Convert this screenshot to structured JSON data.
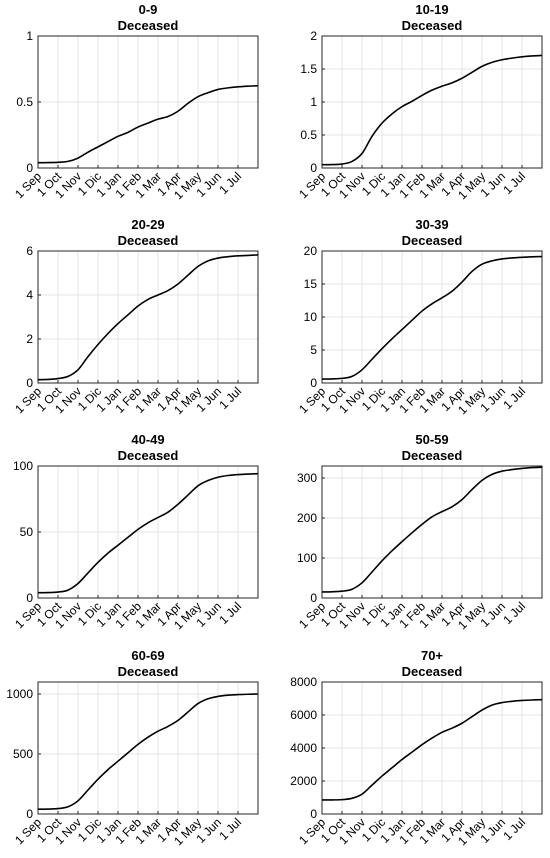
{
  "chart_data": [
    {
      "type": "line",
      "title": "0-9",
      "subtitle": "Deceased",
      "x": [
        "1 Sep",
        "15 Sep",
        "1 Oct",
        "15 Oct",
        "1 Nov",
        "15 Nov",
        "1 Dic",
        "15 Dic",
        "1 Jan",
        "15 Jan",
        "1 Feb",
        "15 Feb",
        "1 Mar",
        "15 Mar",
        "1 Apr",
        "15 Apr",
        "1 May",
        "15 May",
        "1 Jun",
        "15 Jun",
        "1 Jul",
        "15 Jul",
        "1 Aug"
      ],
      "values": [
        0.04,
        0.041,
        0.043,
        0.05,
        0.075,
        0.12,
        0.16,
        0.2,
        0.24,
        0.27,
        0.31,
        0.34,
        0.37,
        0.39,
        0.43,
        0.49,
        0.54,
        0.57,
        0.595,
        0.607,
        0.615,
        0.62,
        0.623
      ],
      "ylim": [
        0,
        1
      ],
      "yticks": [
        0,
        0.5,
        1
      ],
      "ytick_labels": [
        "0",
        "0.5",
        "1"
      ],
      "xtick_labels": [
        "1 Sep",
        "1 Oct",
        "1 Nov",
        "1 Dic",
        "1 Jan",
        "1 Feb",
        "1 Mar",
        "1 Apr",
        "1 May",
        "1 Jun",
        "1 Jul"
      ],
      "grid": true
    },
    {
      "type": "line",
      "title": "10-19",
      "subtitle": "Deceased",
      "x": [
        "1 Sep",
        "15 Sep",
        "1 Oct",
        "15 Oct",
        "1 Nov",
        "15 Nov",
        "1 Dic",
        "15 Dic",
        "1 Jan",
        "15 Jan",
        "1 Feb",
        "15 Feb",
        "1 Mar",
        "15 Mar",
        "1 Apr",
        "15 Apr",
        "1 May",
        "15 May",
        "1 Jun",
        "15 Jun",
        "1 Jul",
        "15 Jul",
        "1 Aug"
      ],
      "values": [
        0.05,
        0.052,
        0.06,
        0.1,
        0.22,
        0.48,
        0.68,
        0.82,
        0.93,
        1.01,
        1.1,
        1.18,
        1.24,
        1.29,
        1.36,
        1.45,
        1.54,
        1.6,
        1.64,
        1.665,
        1.685,
        1.698,
        1.705
      ],
      "ylim": [
        0,
        2
      ],
      "yticks": [
        0,
        0.5,
        1,
        1.5,
        2
      ],
      "ytick_labels": [
        "0",
        "0.5",
        "1",
        "1.5",
        "2"
      ],
      "xtick_labels": [
        "1 Sep",
        "1 Oct",
        "1 Nov",
        "1 Dic",
        "1 Jan",
        "1 Feb",
        "1 Mar",
        "1 Apr",
        "1 May",
        "1 Jun",
        "1 Jul"
      ],
      "grid": true
    },
    {
      "type": "line",
      "title": "20-29",
      "subtitle": "Deceased",
      "x": [
        "1 Sep",
        "15 Sep",
        "1 Oct",
        "15 Oct",
        "1 Nov",
        "15 Nov",
        "1 Dic",
        "15 Dic",
        "1 Jan",
        "15 Jan",
        "1 Feb",
        "15 Feb",
        "1 Mar",
        "15 Mar",
        "1 Apr",
        "15 Apr",
        "1 May",
        "15 May",
        "1 Jun",
        "15 Jun",
        "1 Jul",
        "15 Jul",
        "1 Aug"
      ],
      "values": [
        0.15,
        0.16,
        0.2,
        0.3,
        0.6,
        1.2,
        1.75,
        2.25,
        2.7,
        3.1,
        3.5,
        3.8,
        4.0,
        4.2,
        4.5,
        4.9,
        5.3,
        5.55,
        5.68,
        5.74,
        5.78,
        5.8,
        5.82
      ],
      "ylim": [
        0,
        6
      ],
      "yticks": [
        0,
        2,
        4,
        6
      ],
      "ytick_labels": [
        "0",
        "2",
        "4",
        "6"
      ],
      "xtick_labels": [
        "1 Sep",
        "1 Oct",
        "1 Nov",
        "1 Dic",
        "1 Jan",
        "1 Feb",
        "1 Mar",
        "1 Apr",
        "1 May",
        "1 Jun",
        "1 Jul"
      ],
      "grid": true
    },
    {
      "type": "line",
      "title": "30-39",
      "subtitle": "Deceased",
      "x": [
        "1 Sep",
        "15 Sep",
        "1 Oct",
        "15 Oct",
        "1 Nov",
        "15 Nov",
        "1 Dic",
        "15 Dic",
        "1 Jan",
        "15 Jan",
        "1 Feb",
        "15 Feb",
        "1 Mar",
        "15 Mar",
        "1 Apr",
        "15 Apr",
        "1 May",
        "15 May",
        "1 Jun",
        "15 Jun",
        "1 Jul",
        "15 Jul",
        "1 Aug"
      ],
      "values": [
        0.6,
        0.62,
        0.7,
        1.0,
        2.0,
        3.6,
        5.2,
        6.7,
        8.1,
        9.5,
        10.9,
        12.0,
        12.9,
        13.9,
        15.3,
        16.9,
        18.0,
        18.5,
        18.8,
        18.95,
        19.05,
        19.12,
        19.16
      ],
      "ylim": [
        0,
        20
      ],
      "yticks": [
        0,
        5,
        10,
        15,
        20
      ],
      "ytick_labels": [
        "0",
        "5",
        "10",
        "15",
        "20"
      ],
      "xtick_labels": [
        "1 Sep",
        "1 Oct",
        "1 Nov",
        "1 Dic",
        "1 Jan",
        "1 Feb",
        "1 Mar",
        "1 Apr",
        "1 May",
        "1 Jun",
        "1 Jul"
      ],
      "grid": true
    },
    {
      "type": "line",
      "title": "40-49",
      "subtitle": "Deceased",
      "x": [
        "1 Sep",
        "15 Sep",
        "1 Oct",
        "15 Oct",
        "1 Nov",
        "15 Nov",
        "1 Dic",
        "15 Dic",
        "1 Jan",
        "15 Jan",
        "1 Feb",
        "15 Feb",
        "1 Mar",
        "15 Mar",
        "1 Apr",
        "15 Apr",
        "1 May",
        "15 May",
        "1 Jun",
        "15 Jun",
        "1 Jul",
        "15 Jul",
        "1 Aug"
      ],
      "values": [
        4,
        4.1,
        4.5,
        6,
        11,
        19,
        27,
        34,
        40,
        46,
        52,
        57,
        61,
        65,
        71,
        78,
        85,
        89,
        91.5,
        92.8,
        93.5,
        93.9,
        94.2
      ],
      "ylim": [
        0,
        100
      ],
      "yticks": [
        0,
        50,
        100
      ],
      "ytick_labels": [
        "0",
        "50",
        "100"
      ],
      "xtick_labels": [
        "1 Sep",
        "1 Oct",
        "1 Nov",
        "1 Dic",
        "1 Jan",
        "1 Feb",
        "1 Mar",
        "1 Apr",
        "1 May",
        "1 Jun",
        "1 Jul"
      ],
      "grid": true
    },
    {
      "type": "line",
      "title": "50-59",
      "subtitle": "Deceased",
      "x": [
        "1 Sep",
        "15 Sep",
        "1 Oct",
        "15 Oct",
        "1 Nov",
        "15 Nov",
        "1 Dic",
        "15 Dic",
        "1 Jan",
        "15 Jan",
        "1 Feb",
        "15 Feb",
        "1 Mar",
        "15 Mar",
        "1 Apr",
        "15 Apr",
        "1 May",
        "15 May",
        "1 Jun",
        "15 Jun",
        "1 Jul",
        "15 Jul",
        "1 Aug"
      ],
      "values": [
        15,
        15.5,
        17,
        22,
        38,
        65,
        93,
        118,
        141,
        163,
        184,
        203,
        216,
        228,
        246,
        271,
        294,
        309,
        317,
        321,
        324,
        326,
        327
      ],
      "ylim": [
        0,
        330
      ],
      "yticks": [
        0,
        100,
        200,
        300
      ],
      "ytick_labels": [
        "0",
        "100",
        "200",
        "300"
      ],
      "xtick_labels": [
        "1 Sep",
        "1 Oct",
        "1 Nov",
        "1 Dic",
        "1 Jan",
        "1 Feb",
        "1 Mar",
        "1 Apr",
        "1 May",
        "1 Jun",
        "1 Jul"
      ],
      "grid": true
    },
    {
      "type": "line",
      "title": "60-69",
      "subtitle": "Deceased",
      "x": [
        "1 Sep",
        "15 Sep",
        "1 Oct",
        "15 Oct",
        "1 Nov",
        "15 Nov",
        "1 Dic",
        "15 Dic",
        "1 Jan",
        "15 Jan",
        "1 Feb",
        "15 Feb",
        "1 Mar",
        "15 Mar",
        "1 Apr",
        "15 Apr",
        "1 May",
        "15 May",
        "1 Jun",
        "15 Jun",
        "1 Jul",
        "15 Jul",
        "1 Aug"
      ],
      "values": [
        40,
        41,
        45,
        60,
        110,
        200,
        290,
        370,
        440,
        510,
        580,
        640,
        690,
        730,
        780,
        850,
        920,
        960,
        980,
        990,
        995,
        998,
        1000
      ],
      "ylim": [
        0,
        1100
      ],
      "yticks": [
        0,
        500,
        1000
      ],
      "ytick_labels": [
        "0",
        "500",
        "1000"
      ],
      "xtick_labels": [
        "1 Sep",
        "1 Oct",
        "1 Nov",
        "1 Dic",
        "1 Jan",
        "1 Feb",
        "1 Mar",
        "1 Apr",
        "1 May",
        "1 Jun",
        "1 Jul"
      ],
      "grid": true
    },
    {
      "type": "line",
      "title": "70+",
      "subtitle": "Deceased",
      "x": [
        "1 Sep",
        "15 Sep",
        "1 Oct",
        "15 Oct",
        "1 Nov",
        "15 Nov",
        "1 Dic",
        "15 Dic",
        "1 Jan",
        "15 Jan",
        "1 Feb",
        "15 Feb",
        "1 Mar",
        "15 Mar",
        "1 Apr",
        "15 Apr",
        "1 May",
        "15 May",
        "1 Jun",
        "15 Jun",
        "1 Jul",
        "15 Jul",
        "1 Aug"
      ],
      "values": [
        850,
        855,
        870,
        950,
        1200,
        1750,
        2300,
        2800,
        3300,
        3750,
        4200,
        4600,
        4950,
        5200,
        5500,
        5900,
        6300,
        6600,
        6750,
        6830,
        6880,
        6910,
        6930
      ],
      "ylim": [
        0,
        8000
      ],
      "yticks": [
        0,
        2000,
        4000,
        6000,
        8000
      ],
      "ytick_labels": [
        "0",
        "2000",
        "4000",
        "6000",
        "8000"
      ],
      "xtick_labels": [
        "1 Sep",
        "1 Oct",
        "1 Nov",
        "1 Dic",
        "1 Jan",
        "1 Feb",
        "1 Mar",
        "1 Apr",
        "1 May",
        "1 Jun",
        "1 Jul"
      ],
      "grid": true
    }
  ]
}
